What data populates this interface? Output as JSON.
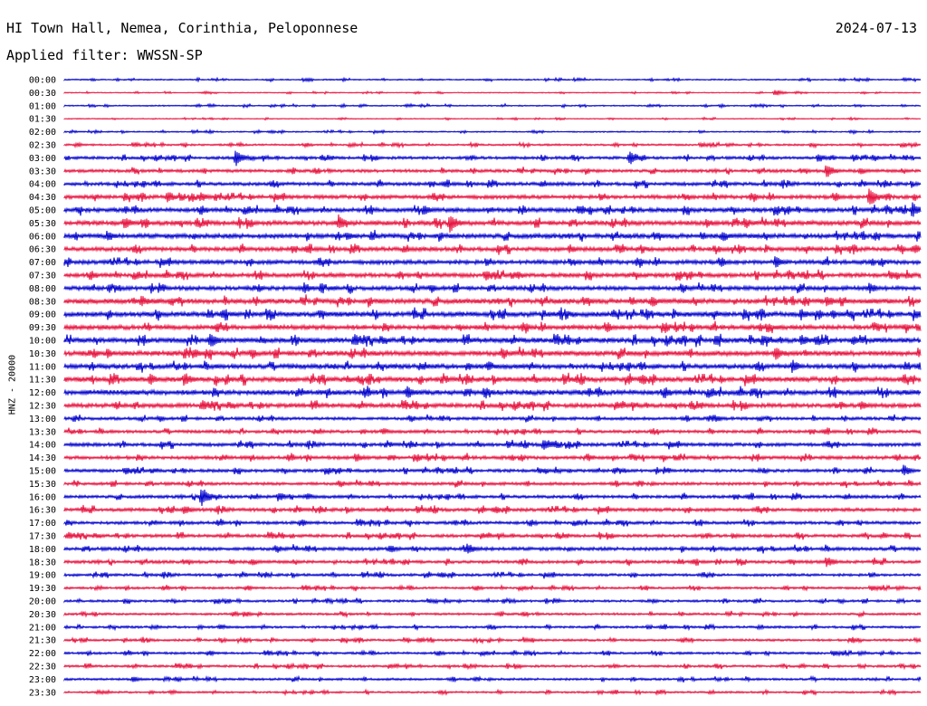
{
  "header": {
    "station": "HI Town Hall, Nemea, Corinthia, Peloponnese",
    "date": "2024-07-13",
    "filter_label": "Applied filter: WWSSN-SP"
  },
  "colors": {
    "even_trace": "#0000cc",
    "odd_trace": "#e6103c"
  },
  "chart_data": {
    "type": "line",
    "title": "",
    "xlabel": "",
    "ylabel": "HNZ - 20000",
    "rows": [
      "00:00",
      "00:30",
      "01:00",
      "01:30",
      "02:00",
      "02:30",
      "03:00",
      "03:30",
      "04:00",
      "04:30",
      "05:00",
      "05:30",
      "06:00",
      "06:30",
      "07:00",
      "07:30",
      "08:00",
      "08:30",
      "09:00",
      "09:30",
      "10:00",
      "10:30",
      "11:00",
      "11:30",
      "12:00",
      "12:30",
      "13:00",
      "13:30",
      "14:00",
      "14:30",
      "15:00",
      "15:30",
      "16:00",
      "16:30",
      "17:00",
      "17:30",
      "18:00",
      "18:30",
      "19:00",
      "19:30",
      "20:00",
      "20:30",
      "21:00",
      "21:30",
      "22:00",
      "22:30",
      "23:00",
      "23:30"
    ],
    "noise_level": [
      0.7,
      0.5,
      0.7,
      0.5,
      0.7,
      1.0,
      1.5,
      1.6,
      1.8,
      2.0,
      2.2,
      2.4,
      2.4,
      2.2,
      2.2,
      2.2,
      2.2,
      2.6,
      2.6,
      2.4,
      2.6,
      2.6,
      2.4,
      2.6,
      2.6,
      2.2,
      1.6,
      1.6,
      1.8,
      1.8,
      1.6,
      1.6,
      1.6,
      1.8,
      1.6,
      1.6,
      1.8,
      1.6,
      1.4,
      1.2,
      1.2,
      1.2,
      1.2,
      1.2,
      1.2,
      1.2,
      1.2,
      1.0
    ],
    "events": [
      {
        "row": 1,
        "t": 0.83,
        "amp": 4
      },
      {
        "row": 6,
        "t": 0.2,
        "amp": 10
      },
      {
        "row": 6,
        "t": 0.66,
        "amp": 10
      },
      {
        "row": 6,
        "t": 0.88,
        "amp": 6
      },
      {
        "row": 7,
        "t": 0.89,
        "amp": 9
      },
      {
        "row": 9,
        "t": 0.12,
        "amp": 8
      },
      {
        "row": 9,
        "t": 0.16,
        "amp": 6
      },
      {
        "row": 9,
        "t": 0.94,
        "amp": 12
      },
      {
        "row": 10,
        "t": 0.42,
        "amp": 7
      },
      {
        "row": 10,
        "t": 0.6,
        "amp": 6
      },
      {
        "row": 10,
        "t": 0.99,
        "amp": 9
      },
      {
        "row": 11,
        "t": 0.07,
        "amp": 8
      },
      {
        "row": 11,
        "t": 0.32,
        "amp": 10
      },
      {
        "row": 11,
        "t": 0.45,
        "amp": 12
      },
      {
        "row": 11,
        "t": 0.75,
        "amp": 6
      },
      {
        "row": 12,
        "t": 0.05,
        "amp": 7
      },
      {
        "row": 12,
        "t": 0.33,
        "amp": 6
      },
      {
        "row": 13,
        "t": 0.59,
        "amp": 6
      },
      {
        "row": 14,
        "t": 0.83,
        "amp": 8
      },
      {
        "row": 15,
        "t": 0.53,
        "amp": 5
      },
      {
        "row": 16,
        "t": 0.28,
        "amp": 7
      },
      {
        "row": 16,
        "t": 0.94,
        "amp": 7
      },
      {
        "row": 17,
        "t": 0.09,
        "amp": 7
      },
      {
        "row": 17,
        "t": 0.89,
        "amp": 8
      },
      {
        "row": 18,
        "t": 0.64,
        "amp": 5
      },
      {
        "row": 18,
        "t": 0.86,
        "amp": 7
      },
      {
        "row": 19,
        "t": 0.43,
        "amp": 4
      },
      {
        "row": 19,
        "t": 0.82,
        "amp": 5
      },
      {
        "row": 20,
        "t": 0.17,
        "amp": 10
      },
      {
        "row": 20,
        "t": 0.76,
        "amp": 7
      },
      {
        "row": 20,
        "t": 0.86,
        "amp": 8
      },
      {
        "row": 20,
        "t": 0.92,
        "amp": 6
      },
      {
        "row": 21,
        "t": 0.05,
        "amp": 6
      },
      {
        "row": 21,
        "t": 0.15,
        "amp": 7
      },
      {
        "row": 21,
        "t": 0.83,
        "amp": 8
      },
      {
        "row": 22,
        "t": 0.85,
        "amp": 8
      },
      {
        "row": 23,
        "t": 0.1,
        "amp": 7
      },
      {
        "row": 23,
        "t": 0.14,
        "amp": 9
      },
      {
        "row": 23,
        "t": 0.33,
        "amp": 5
      },
      {
        "row": 24,
        "t": 0.4,
        "amp": 8
      },
      {
        "row": 24,
        "t": 0.49,
        "amp": 6
      },
      {
        "row": 25,
        "t": 0.93,
        "amp": 7
      },
      {
        "row": 26,
        "t": 0.76,
        "amp": 5
      },
      {
        "row": 28,
        "t": 0.56,
        "amp": 8
      },
      {
        "row": 29,
        "t": 0.34,
        "amp": 6
      },
      {
        "row": 30,
        "t": 0.98,
        "amp": 7
      },
      {
        "row": 32,
        "t": 0.16,
        "amp": 12
      },
      {
        "row": 32,
        "t": 0.25,
        "amp": 6
      },
      {
        "row": 33,
        "t": 0.14,
        "amp": 6
      },
      {
        "row": 35,
        "t": 0.78,
        "amp": 4
      },
      {
        "row": 36,
        "t": 0.38,
        "amp": 6
      },
      {
        "row": 36,
        "t": 0.47,
        "amp": 7
      },
      {
        "row": 37,
        "t": 0.89,
        "amp": 7
      },
      {
        "row": 41,
        "t": 0.21,
        "amp": 4
      },
      {
        "row": 43,
        "t": 0.92,
        "amp": 4
      },
      {
        "row": 46,
        "t": 0.08,
        "amp": 4
      }
    ]
  }
}
